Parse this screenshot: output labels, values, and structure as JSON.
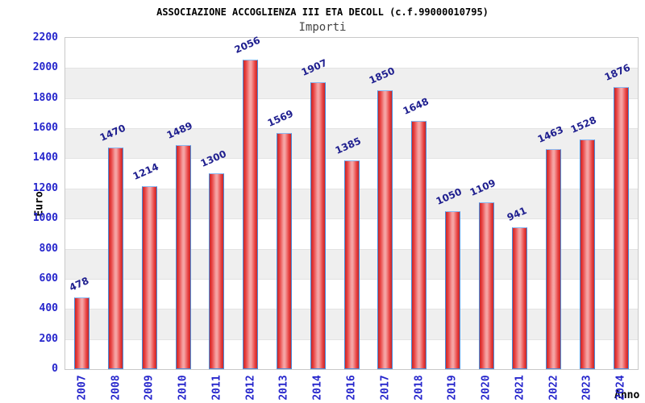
{
  "chart_data": {
    "type": "bar",
    "title": "ASSOCIAZIONE ACCOGLIENZA III ETA DECOLL (c.f.99000010795)",
    "subtitle": "Importi",
    "xlabel": "Anno",
    "ylabel": "Euro",
    "categories": [
      "2007",
      "2008",
      "2009",
      "2010",
      "2011",
      "2012",
      "2013",
      "2014",
      "2016",
      "2017",
      "2018",
      "2019",
      "2020",
      "2021",
      "2022",
      "2023",
      "2024"
    ],
    "values": [
      478,
      1470,
      1214,
      1489,
      1300,
      2056,
      1569,
      1907,
      1385,
      1850,
      1648,
      1050,
      1109,
      941,
      1463,
      1528,
      1876
    ],
    "ylim": [
      0,
      2200
    ],
    "ytick_step": 200,
    "grid": "alternating-horizontal-bands",
    "legend_position": "none",
    "colors": {
      "bar_edge": "#c62828",
      "bar_center": "#f5a3a3",
      "bar_border": "#4a8ede",
      "bar_border_top": "#8ab8f0",
      "axis_tick_label": "#2626cc",
      "value_label": "#1f1f8f",
      "band_gray": "#efefef",
      "band_line": "#e3e3e3",
      "plot_border": "#c9c9c9",
      "title": "#000000",
      "subtitle": "#444444"
    }
  }
}
